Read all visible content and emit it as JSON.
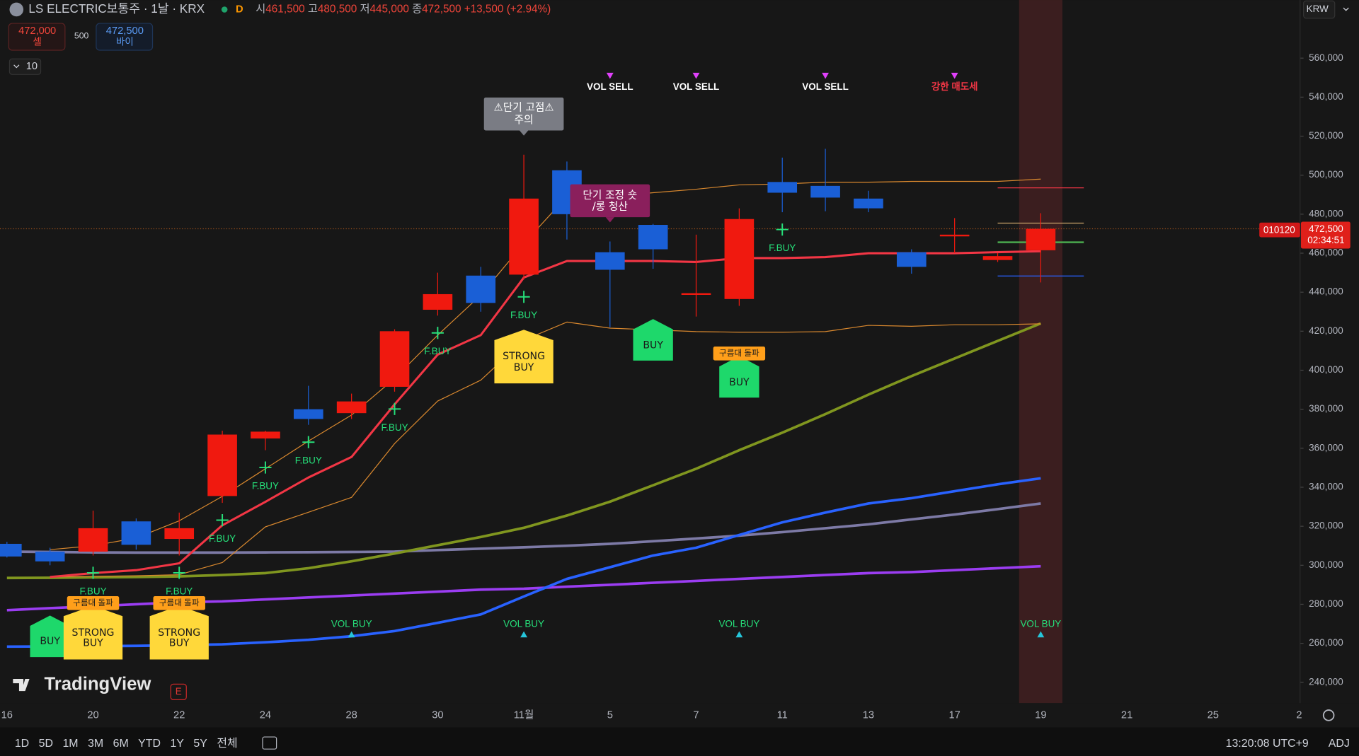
{
  "header": {
    "symbol": "LS ELECTRIC보통주 · 1날 · KRX",
    "flag": "D",
    "ohlc": [
      {
        "label": "시",
        "value": "461,500"
      },
      {
        "label": "고",
        "value": "480,500"
      },
      {
        "label": "저",
        "value": "445,000"
      },
      {
        "label": "종",
        "value": "472,500"
      }
    ],
    "change": "+13,500 (+2.94%)"
  },
  "trade": {
    "sell_price": "472,000",
    "sell": "셀",
    "spread": "500",
    "buy_price": "472,500",
    "buy": "바이"
  },
  "indicator_count": "10",
  "currency": "KRW",
  "price_tag": {
    "symbol": "010120",
    "price": "472,500",
    "countdown": "02:34:51"
  },
  "logo": "TradingView",
  "earnings": "E",
  "toolbar": {
    "ranges": [
      "1D",
      "5D",
      "1M",
      "3M",
      "6M",
      "YTD",
      "1Y",
      "5Y",
      "전체"
    ],
    "time": "13:20:08 UTC+9",
    "adj": "ADJ"
  },
  "chart_data": {
    "type": "candlestick",
    "categories": [
      "16",
      null,
      "20",
      null,
      "22",
      null,
      "24",
      null,
      "28",
      null,
      "30",
      null,
      "11월",
      null,
      "5",
      null,
      "7",
      null,
      "11",
      null,
      "13",
      null,
      "17",
      null,
      "19",
      null,
      "21",
      null,
      "25",
      null,
      "2"
    ],
    "open": [
      311000,
      307000,
      307000,
      322500,
      313500,
      335500,
      365000,
      380000,
      378000,
      391500,
      431000,
      448500,
      449000,
      502500,
      460500,
      474500,
      439000,
      436500,
      496500,
      494500,
      488000,
      460500,
      469000,
      456500,
      461500,
      null,
      null,
      null,
      null,
      null,
      null
    ],
    "high": [
      312000,
      309000,
      328000,
      324000,
      327000,
      369000,
      369000,
      392000,
      388000,
      421000,
      450000,
      453000,
      510500,
      507000,
      466000,
      475000,
      469500,
      483000,
      509000,
      513500,
      492000,
      462000,
      478000,
      460000,
      480500,
      null,
      null,
      null,
      null,
      null,
      null
    ],
    "low": [
      304000,
      300000,
      305000,
      308000,
      305000,
      332000,
      359000,
      372000,
      375000,
      389000,
      428000,
      430000,
      446500,
      467000,
      422000,
      452000,
      427500,
      433000,
      481000,
      481500,
      481000,
      449500,
      460000,
      455500,
      445000,
      null,
      null,
      null,
      null,
      null,
      null
    ],
    "close": [
      304500,
      302000,
      319000,
      310500,
      319000,
      367000,
      368500,
      375000,
      384000,
      420000,
      439000,
      434500,
      488000,
      480000,
      451500,
      462000,
      439500,
      477500,
      491000,
      488500,
      483000,
      453000,
      469500,
      458500,
      472500,
      null,
      null,
      null,
      null,
      null,
      null
    ],
    "up_color": "#f0190f",
    "down_color": "#1a5fd6",
    "ylim": [
      229300,
      589800
    ],
    "yticks": [
      {
        "value": 240000,
        "label": "240,000"
      },
      {
        "value": 260000,
        "label": "260,000"
      },
      {
        "value": 280000,
        "label": "280,000"
      },
      {
        "value": 300000,
        "label": "300,000"
      },
      {
        "value": 320000,
        "label": "320,000"
      },
      {
        "value": 340000,
        "label": "340,000"
      },
      {
        "value": 360000,
        "label": "360,000"
      },
      {
        "value": 380000,
        "label": "380,000"
      },
      {
        "value": 400000,
        "label": "400,000"
      },
      {
        "value": 420000,
        "label": "420,000"
      },
      {
        "value": 440000,
        "label": "440,000"
      },
      {
        "value": 460000,
        "label": "460,000"
      },
      {
        "value": 480000,
        "label": "480,000"
      },
      {
        "value": 500000,
        "label": "500,000"
      },
      {
        "value": 520000,
        "label": "520,000"
      },
      {
        "value": 540000,
        "label": "540,000"
      },
      {
        "value": 560000,
        "label": "560,000"
      }
    ],
    "grid": false,
    "highlight": "19",
    "overlays": [
      {
        "color": "#9b3df2",
        "width": 3,
        "values": [
          277000,
          278000,
          279000,
          280000,
          281000,
          281500,
          282500,
          283500,
          284500,
          285500,
          286500,
          287500,
          288000,
          289000,
          290000,
          291000,
          292000,
          293000,
          294000,
          295000,
          296000,
          296500,
          297500,
          298500,
          299500,
          null,
          null,
          null,
          null,
          null,
          null
        ]
      },
      {
        "color": "#7d7aa6",
        "width": 3,
        "values": [
          307000,
          306800,
          306600,
          306500,
          306500,
          306500,
          306600,
          306700,
          306800,
          307000,
          307800,
          308500,
          309200,
          310000,
          311000,
          312300,
          313700,
          315200,
          317000,
          319000,
          321000,
          323500,
          326000,
          328800,
          331700,
          null,
          null,
          null,
          null,
          null,
          null
        ]
      },
      {
        "color": "#2962ff",
        "width": 3,
        "values": [
          258300,
          258400,
          258500,
          258700,
          259000,
          259500,
          260500,
          261800,
          263600,
          266300,
          270500,
          274800,
          284000,
          293000,
          299000,
          305000,
          309000,
          315500,
          322000,
          327000,
          331700,
          334400,
          338000,
          341500,
          344600,
          null,
          null,
          null,
          null,
          null,
          null
        ]
      },
      {
        "color": "#80961f",
        "width": 3,
        "values": [
          293500,
          293600,
          293800,
          294000,
          294300,
          295000,
          296000,
          298500,
          302000,
          306000,
          310300,
          314500,
          319200,
          325500,
          332600,
          341000,
          349500,
          359000,
          368000,
          377500,
          387500,
          397000,
          406000,
          415000,
          424000,
          null,
          null,
          null,
          null,
          null,
          null
        ]
      },
      {
        "color": "#d9882e",
        "width": 1,
        "values": [
          null,
          308000,
          310000,
          314000,
          322800,
          335300,
          349500,
          363700,
          377000,
          395800,
          418000,
          438500,
          465000,
          489000,
          489000,
          491000,
          492800,
          495000,
          495500,
          496400,
          496400,
          496800,
          496800,
          496800,
          498000,
          null,
          null,
          null,
          null,
          null,
          null
        ]
      },
      {
        "color": "#d9882e",
        "width": 1,
        "values": [
          null,
          294000,
          294300,
          294600,
          295200,
          301400,
          319700,
          327200,
          334800,
          362400,
          384200,
          394900,
          415400,
          424700,
          421600,
          420700,
          419800,
          419500,
          419500,
          419800,
          423000,
          422500,
          423300,
          423300,
          423800,
          null,
          null,
          null,
          null,
          null,
          null
        ]
      },
      {
        "color": "#f23645",
        "width": 2.5,
        "values": [
          null,
          294000,
          296000,
          297500,
          301000,
          320500,
          332500,
          345000,
          355500,
          382500,
          408000,
          418000,
          447500,
          456000,
          456000,
          456000,
          455500,
          457500,
          457500,
          458000,
          460000,
          460000,
          460000,
          460500,
          461000,
          null,
          null,
          null,
          null,
          null,
          null
        ]
      }
    ],
    "levels": [
      {
        "value": 493500,
        "color": "#f23645"
      },
      {
        "value": 475400,
        "color": "#c9a46a"
      },
      {
        "value": 465600,
        "color": "#4caf50"
      },
      {
        "value": 448300,
        "color": "#2962ff"
      }
    ],
    "signals": [
      {
        "style": "top",
        "color": "#e040fb",
        "text_color": "#ffffff",
        "labels": [
          null,
          null,
          null,
          null,
          null,
          null,
          null,
          null,
          null,
          null,
          null,
          null,
          null,
          null,
          "VOL SELL",
          null,
          "VOL SELL",
          null,
          null,
          "VOL SELL",
          null,
          null,
          null,
          null,
          null,
          null,
          null,
          null,
          null,
          null,
          null
        ]
      },
      {
        "style": "top",
        "color": "#e040fb",
        "text_color": "#f23645",
        "labels": [
          null,
          null,
          null,
          null,
          null,
          null,
          null,
          null,
          null,
          null,
          null,
          null,
          null,
          null,
          null,
          null,
          null,
          null,
          null,
          null,
          null,
          null,
          "강한 매도세",
          null,
          null,
          null,
          null,
          null,
          null,
          null,
          null
        ]
      },
      {
        "style": "bottom",
        "color": "#26c6da",
        "text_color": "#26e07a",
        "labels": [
          null,
          null,
          null,
          null,
          null,
          null,
          null,
          null,
          "VOL BUY",
          null,
          null,
          null,
          "VOL BUY",
          null,
          null,
          null,
          null,
          "VOL BUY",
          null,
          null,
          null,
          null,
          null,
          null,
          "VOL BUY",
          null,
          null,
          null,
          null,
          null,
          null
        ]
      },
      {
        "style": "cross",
        "color": "#26e07a",
        "text_color": "#26e07a",
        "labels": [
          null,
          null,
          "F.BUY",
          null,
          "F.BUY",
          "F.BUY",
          "F.BUY",
          "F.BUY",
          null,
          "F.BUY",
          "F.BUY",
          null,
          "F.BUY",
          null,
          null,
          null,
          null,
          null,
          "F.BUY",
          null,
          null,
          null,
          null,
          null,
          null,
          null,
          null,
          null,
          null,
          null,
          null
        ]
      },
      {
        "style": "flag",
        "color": "#1ed86b",
        "text_color": "#1a1a1a",
        "labels": [
          null,
          "BUY",
          null,
          null,
          null,
          null,
          null,
          null,
          null,
          null,
          null,
          null,
          null,
          null,
          null,
          "BUY",
          null,
          "BUY",
          null,
          null,
          null,
          null,
          null,
          null,
          null,
          null,
          null,
          null,
          null,
          null,
          null
        ]
      },
      {
        "style": "flag",
        "color": "#ffd83a",
        "text_color": "#1a1a1a",
        "labels": [
          null,
          null,
          "STRONG BUY",
          null,
          "STRONG BUY",
          null,
          null,
          null,
          null,
          null,
          null,
          null,
          "STRONG BUY",
          null,
          null,
          null,
          null,
          null,
          null,
          null,
          null,
          null,
          null,
          null,
          null,
          null,
          null,
          null,
          null,
          null,
          null
        ]
      },
      {
        "style": "tag",
        "color": "#ff9f1a",
        "text_color": "#1a1a1a",
        "labels": [
          null,
          null,
          "구름대 돌파",
          null,
          "구름대 돌파",
          null,
          null,
          null,
          null,
          null,
          null,
          null,
          null,
          null,
          null,
          null,
          null,
          "구름대 돌파",
          null,
          null,
          null,
          null,
          null,
          null,
          null,
          null,
          null,
          null,
          null,
          null,
          null
        ]
      },
      {
        "style": "box",
        "color": "#7a7c84",
        "text_color": "#ffffff",
        "labels": [
          null,
          null,
          null,
          null,
          null,
          null,
          null,
          null,
          null,
          null,
          null,
          null,
          "⚠단기 고점⚠\n주의",
          null,
          null,
          null,
          null,
          null,
          null,
          null,
          null,
          null,
          null,
          null,
          null,
          null,
          null,
          null,
          null,
          null,
          null
        ]
      },
      {
        "style": "box",
        "color": "#8a1f5c",
        "text_color": "#ffffff",
        "labels": [
          null,
          null,
          null,
          null,
          null,
          null,
          null,
          null,
          null,
          null,
          null,
          null,
          null,
          null,
          "단기 조정 숏\n/롱 청산",
          null,
          null,
          null,
          null,
          null,
          null,
          null,
          null,
          null,
          null,
          null,
          null,
          null,
          null,
          null,
          null
        ]
      }
    ]
  }
}
